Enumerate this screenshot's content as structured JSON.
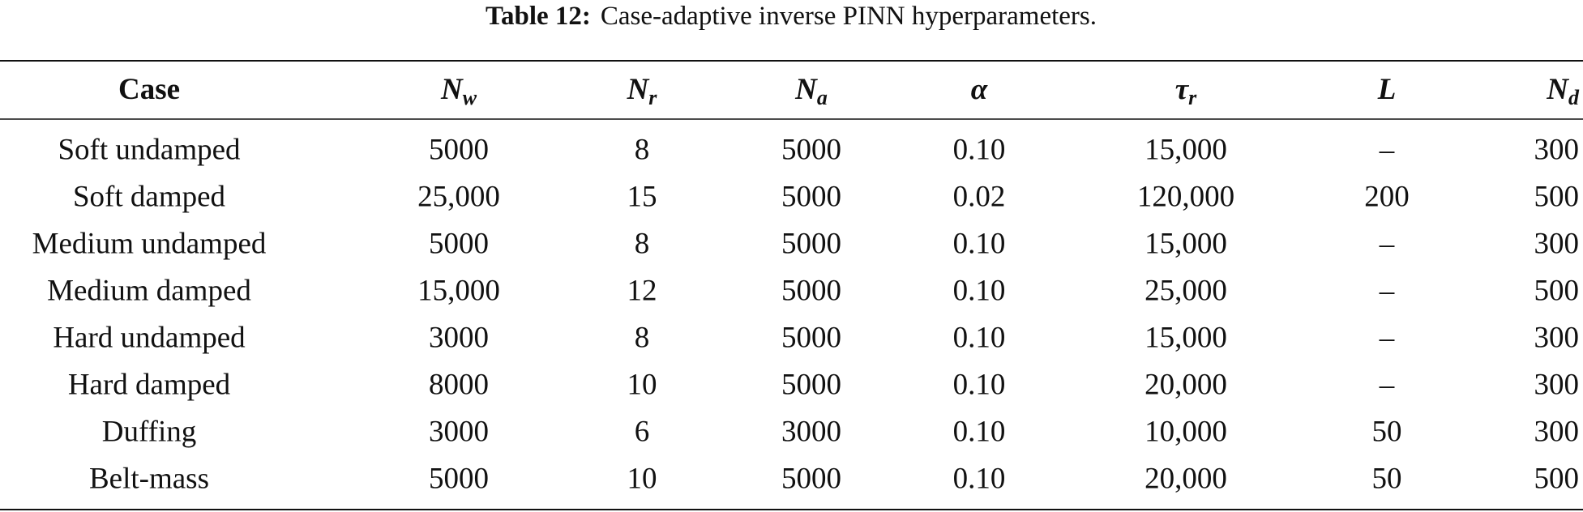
{
  "caption": {
    "label": "Table 12:",
    "text": "Case-adaptive inverse PINN hyperparameters."
  },
  "table": {
    "headers": [
      {
        "symbol": "Case"
      },
      {
        "symbol": "N",
        "sub": "w"
      },
      {
        "symbol": "N",
        "sub": "r"
      },
      {
        "symbol": "N",
        "sub": "a"
      },
      {
        "symbol": "α"
      },
      {
        "symbol": "τ",
        "sub": "r"
      },
      {
        "symbol": "L"
      },
      {
        "symbol": "N",
        "sub": "d"
      }
    ],
    "rows": [
      [
        "Soft undamped",
        "5000",
        "8",
        "5000",
        "0.10",
        "15,000",
        "–",
        "300"
      ],
      [
        "Soft damped",
        "25,000",
        "15",
        "5000",
        "0.02",
        "120,000",
        "200",
        "500"
      ],
      [
        "Medium undamped",
        "5000",
        "8",
        "5000",
        "0.10",
        "15,000",
        "–",
        "300"
      ],
      [
        "Medium damped",
        "15,000",
        "12",
        "5000",
        "0.10",
        "25,000",
        "–",
        "500"
      ],
      [
        "Hard undamped",
        "3000",
        "8",
        "5000",
        "0.10",
        "15,000",
        "–",
        "300"
      ],
      [
        "Hard damped",
        "8000",
        "10",
        "5000",
        "0.10",
        "20,000",
        "–",
        "300"
      ],
      [
        "Duffing",
        "3000",
        "6",
        "3000",
        "0.10",
        "10,000",
        "50",
        "300"
      ],
      [
        "Belt-mass",
        "5000",
        "10",
        "5000",
        "0.10",
        "20,000",
        "50",
        "500"
      ]
    ]
  }
}
